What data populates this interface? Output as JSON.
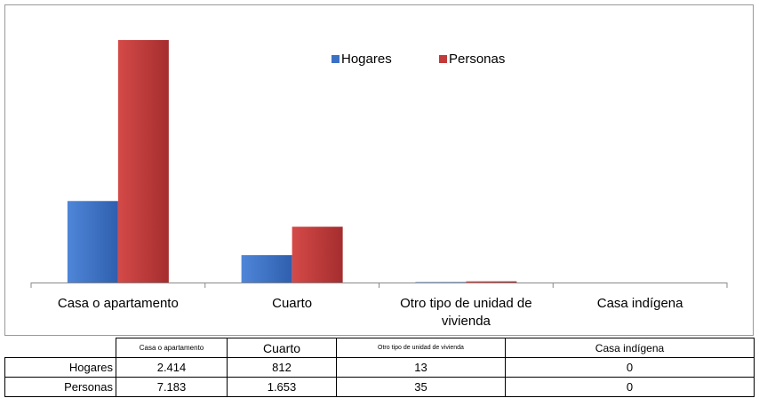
{
  "chart_data": {
    "type": "bar",
    "categories": [
      "Casa o apartamento",
      "Cuarto",
      "Otro tipo de unidad de vivienda",
      "Casa indígena"
    ],
    "series": [
      {
        "name": "Hogares",
        "color": "#3c70c4",
        "values": [
          2414,
          812,
          13,
          0
        ],
        "value_labels": [
          "2.414",
          "812",
          "13",
          "0"
        ]
      },
      {
        "name": "Personas",
        "color": "#c23a3a",
        "values": [
          7183,
          1653,
          35,
          0
        ],
        "value_labels": [
          "7.183",
          "1.653",
          "35",
          "0"
        ]
      }
    ],
    "ylim": [
      0,
      8000
    ],
    "legend": "top"
  }
}
